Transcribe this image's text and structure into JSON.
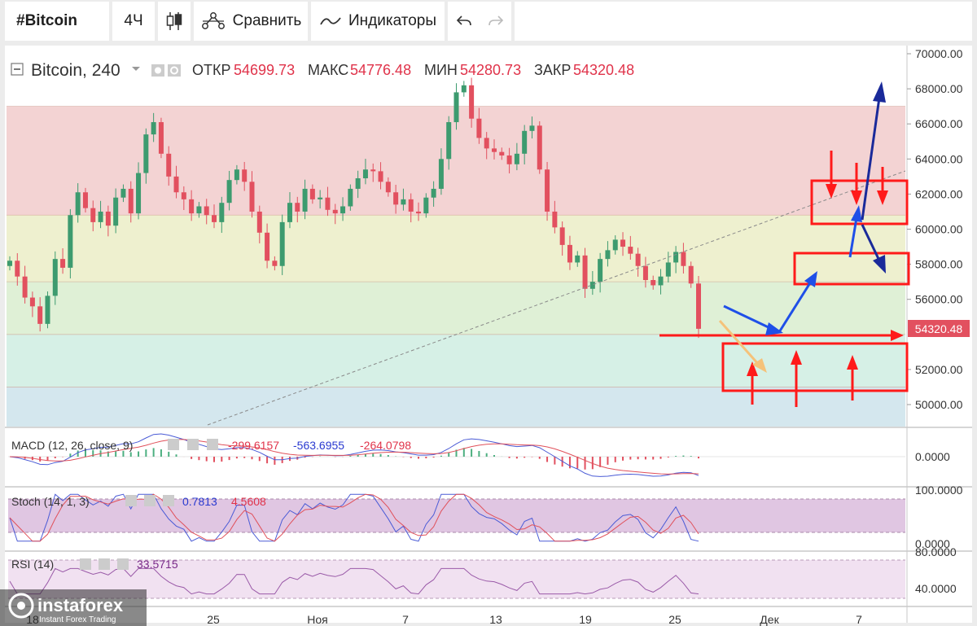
{
  "toolbar": {
    "symbol": "#Bitcoin",
    "interval": "4Ч",
    "compare_label": "Сравнить",
    "indicators_label": "Индикаторы",
    "candles_icon": "candlestick-icon",
    "compare_icon": "compare-icon",
    "indicators_icon": "indicators-icon",
    "undo_icon": "undo-icon",
    "redo_icon": "redo-icon"
  },
  "legend": {
    "title": "Bitcoin, 240",
    "open_label": "ОТКР",
    "open_value": "54699.73",
    "high_label": "МАКС",
    "high_value": "54776.48",
    "low_label": "МИН",
    "low_value": "54280.73",
    "close_label": "ЗАКР",
    "close_value": "54320.48"
  },
  "colors": {
    "up": "#3d9b6f",
    "down": "#e2505f",
    "value_red": "#e0334a",
    "zone_red": "#f3d3d3",
    "zone_yellow": "#eef0cf",
    "zone_green": "#dff0d6",
    "zone_teal": "#d6f0e6",
    "zone_blue": "#d4e7ee",
    "annotation_red": "#ff1a1a",
    "annotation_blue": "#1f4fe8",
    "annotation_navy": "#1a2a9a",
    "annotation_orange": "#f5c27a"
  },
  "chart_data": [
    {
      "type": "candlestick",
      "name": "Bitcoin, 240",
      "y_axis": {
        "ticks": [
          "70000.00",
          "68000.00",
          "66000.00",
          "64000.00",
          "62000.00",
          "60000.00",
          "58000.00",
          "56000.00",
          "54000.00",
          "52000.00",
          "50000.00"
        ],
        "range": [
          48000,
          70500
        ]
      },
      "x_axis": {
        "ticks": [
          "18",
          "25",
          "Ноя",
          "7",
          "13",
          "19",
          "25",
          "Дек",
          "7"
        ]
      },
      "last_price_label": "54320.48",
      "zones": [
        {
          "from": 60800,
          "to": 67000,
          "color": "zone_red"
        },
        {
          "from": 57000,
          "to": 60800,
          "color": "zone_yellow"
        },
        {
          "from": 54000,
          "to": 57000,
          "color": "zone_green"
        },
        {
          "from": 51000,
          "to": 54000,
          "color": "zone_teal"
        },
        {
          "from": 48000,
          "to": 51000,
          "color": "zone_blue"
        }
      ],
      "closes": [
        58200,
        57300,
        56100,
        55600,
        54600,
        56200,
        58300,
        57800,
        60800,
        62100,
        61200,
        60400,
        61000,
        60200,
        61800,
        62300,
        60900,
        63200,
        65400,
        66100,
        64300,
        63000,
        62100,
        61700,
        60900,
        61300,
        60800,
        60400,
        61500,
        62800,
        63400,
        62700,
        61000,
        59800,
        58200,
        57900,
        60400,
        61500,
        61000,
        62300,
        61700,
        61800,
        61100,
        60900,
        61300,
        62300,
        62900,
        63400,
        63300,
        62700,
        62100,
        61400,
        61700,
        61000,
        60900,
        61800,
        62300,
        64000,
        66100,
        67800,
        68200,
        66300,
        65200,
        64600,
        64400,
        64200,
        63700,
        64300,
        65600,
        65900,
        63400,
        61000,
        60100,
        59100,
        58100,
        58500,
        56600,
        57000,
        58300,
        58800,
        59400,
        59000,
        58600,
        57900,
        57100,
        56800,
        57300,
        58100,
        58700,
        57900,
        56900,
        54320
      ]
    },
    {
      "type": "line",
      "name": "MACD (12, 26, close, 9)",
      "values_text": [
        "-299.6157",
        "-563.6955",
        "-264.0798"
      ],
      "axis_label": "0.0000"
    },
    {
      "type": "line",
      "name": "Stoch (14, 1, 3)",
      "values_text": [
        "0.7813",
        "4.5608"
      ],
      "axis_labels": [
        "100.0000",
        "0.0000"
      ]
    },
    {
      "type": "line",
      "name": "RSI (14)",
      "values_text": [
        "33.5715"
      ],
      "axis_labels": [
        "80.0000",
        "40.0000"
      ]
    }
  ],
  "watermark": {
    "brand": "instaforex",
    "tagline": "Instant Forex Trading"
  }
}
